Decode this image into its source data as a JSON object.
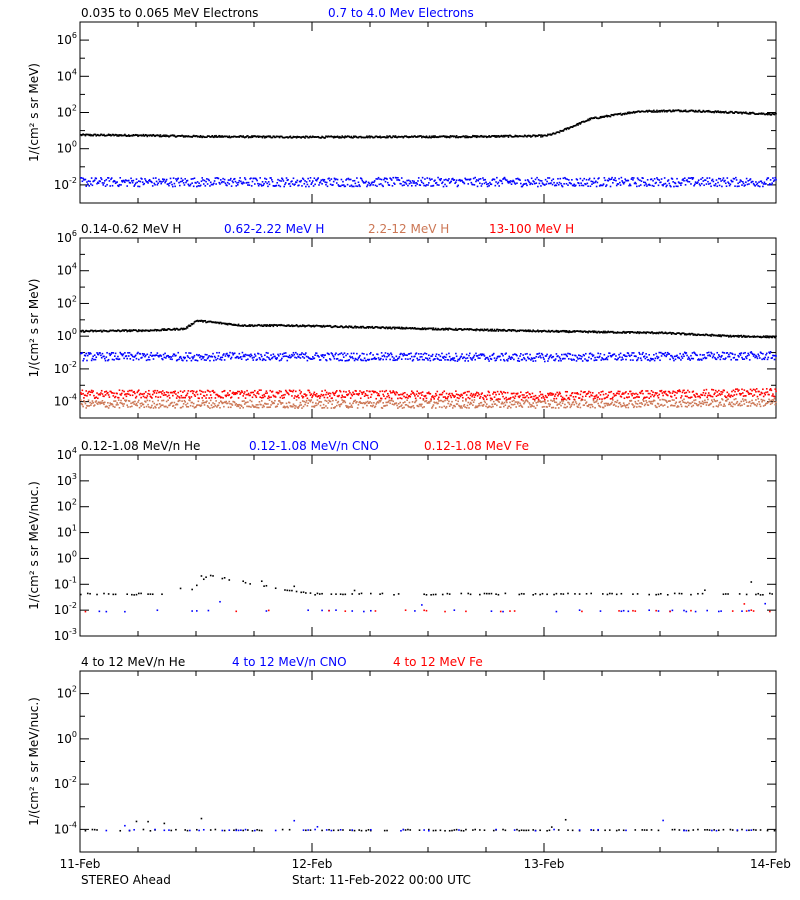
{
  "chart_data": [
    {
      "type": "scatter",
      "ylabel": "1/(cm² s sr MeV)",
      "yscale": "log",
      "ylim_exp": [
        -3,
        7
      ],
      "tick_exp": [
        -2,
        0,
        2,
        4,
        6
      ],
      "legend": [
        "0.035 to 0.065 MeV Electrons",
        "0.7 to 4.0 Mev Electrons"
      ],
      "series": [
        {
          "name": "0.035 to 0.065 MeV Electrons",
          "color": "#000000",
          "x_days": [
            0,
            0.25,
            0.5,
            0.75,
            1.0,
            1.25,
            1.5,
            1.75,
            2.0,
            2.05,
            2.2,
            2.4,
            2.6,
            2.8,
            3.0
          ],
          "log10": [
            0.8,
            0.78,
            0.72,
            0.7,
            0.68,
            0.7,
            0.7,
            0.72,
            0.75,
            0.9,
            1.7,
            2.1,
            2.15,
            2.05,
            1.95
          ]
        },
        {
          "name": "0.7 to 4.0 Mev Electrons",
          "color": "#0000ff",
          "x_days": [
            0,
            1.0,
            2.0,
            3.0
          ],
          "log10": [
            -1.8,
            -1.8,
            -1.8,
            -1.8
          ]
        }
      ]
    },
    {
      "type": "scatter",
      "ylabel": "1/(cm² s sr MeV)",
      "yscale": "log",
      "ylim_exp": [
        -5,
        6
      ],
      "tick_exp": [
        -4,
        -2,
        0,
        2,
        4,
        6
      ],
      "legend": [
        "0.14-0.62 MeV H",
        "0.62-2.22 MeV H",
        "2.2-12 MeV H",
        "13-100 MeV H"
      ],
      "series": [
        {
          "name": "0.14-0.62 MeV H",
          "color": "#000000",
          "x_days": [
            0,
            0.3,
            0.45,
            0.5,
            0.6,
            0.7,
            0.9,
            1.2,
            1.5,
            2.0,
            2.5,
            2.8,
            3.0
          ],
          "log10": [
            0.35,
            0.4,
            0.5,
            1.0,
            0.85,
            0.7,
            0.7,
            0.6,
            0.5,
            0.35,
            0.25,
            0.05,
            0.0
          ]
        },
        {
          "name": "0.62-2.22 MeV H",
          "color": "#0000ff",
          "x_days": [
            0,
            1.0,
            2.0,
            3.0
          ],
          "log10": [
            -1.2,
            -1.2,
            -1.25,
            -1.15
          ]
        },
        {
          "name": "2.2-12 MeV H",
          "color": "#cc7755",
          "x_days": [
            0,
            1.0,
            2.0,
            3.0
          ],
          "log10": [
            -4.1,
            -4.1,
            -4.1,
            -4.0
          ]
        },
        {
          "name": "13-100 MeV H",
          "color": "#ff0000",
          "x_days": [
            0,
            1.0,
            2.0,
            3.0
          ],
          "log10": [
            -3.5,
            -3.5,
            -3.6,
            -3.4
          ]
        }
      ]
    },
    {
      "type": "scatter",
      "ylabel": "1/(cm² s sr MeV/nuc.)",
      "yscale": "log",
      "ylim_exp": [
        -3,
        4
      ],
      "tick_exp": [
        -3,
        -2,
        -1,
        0,
        1,
        2,
        3,
        4
      ],
      "legend": [
        "0.12-1.08 MeV/n He",
        "0.12-1.08 MeV/n CNO",
        "0.12-1.08 MeV Fe"
      ],
      "series": [
        {
          "name": "0.12-1.08 MeV/n He",
          "color": "#000000",
          "x_days": [
            0,
            0.45,
            0.5,
            0.55,
            0.65,
            1.0,
            2.0,
            3.0
          ],
          "log10": [
            -1.35,
            -1.35,
            -1.0,
            -0.6,
            -0.8,
            -1.35,
            -1.35,
            -1.35
          ]
        },
        {
          "name": "0.12-1.08 MeV/n CNO",
          "color": "#0000ff",
          "x_days": [
            0,
            3.0
          ],
          "log10": [
            -2.0,
            -2.0
          ]
        },
        {
          "name": "0.12-1.08 MeV Fe",
          "color": "#ff0000",
          "x_days": [
            0,
            3.0
          ],
          "log10": [
            -2.0,
            -2.0
          ]
        }
      ]
    },
    {
      "type": "scatter",
      "ylabel": "1/(cm² s sr MeV/nuc.)",
      "yscale": "log",
      "ylim_exp": [
        -5,
        3
      ],
      "tick_exp": [
        -4,
        -2,
        0,
        2
      ],
      "legend": [
        "4 to 12 MeV/n He",
        "4 to 12 MeV/n CNO",
        "4 to 12 MeV Fe"
      ],
      "series": [
        {
          "name": "4 to 12 MeV/n He",
          "color": "#000000",
          "x_days": [
            0,
            3.0
          ],
          "log10": [
            -4.0,
            -4.0
          ]
        },
        {
          "name": "4 to 12 MeV/n CNO",
          "color": "#0000ff",
          "x_days": [
            0,
            3.0
          ],
          "log10": [
            -4.0,
            -4.0
          ]
        },
        {
          "name": "4 to 12 MeV Fe",
          "color": "#ff0000",
          "x_days": [],
          "log10": []
        }
      ]
    }
  ],
  "x_axis": {
    "tick_labels": [
      "11-Feb",
      "12-Feb",
      "13-Feb",
      "14-Feb"
    ],
    "tick_days": [
      0,
      1,
      2,
      3
    ]
  },
  "footer": {
    "spacecraft": "STEREO Ahead",
    "start": "Start: 11-Feb-2022 00:00 UTC"
  }
}
